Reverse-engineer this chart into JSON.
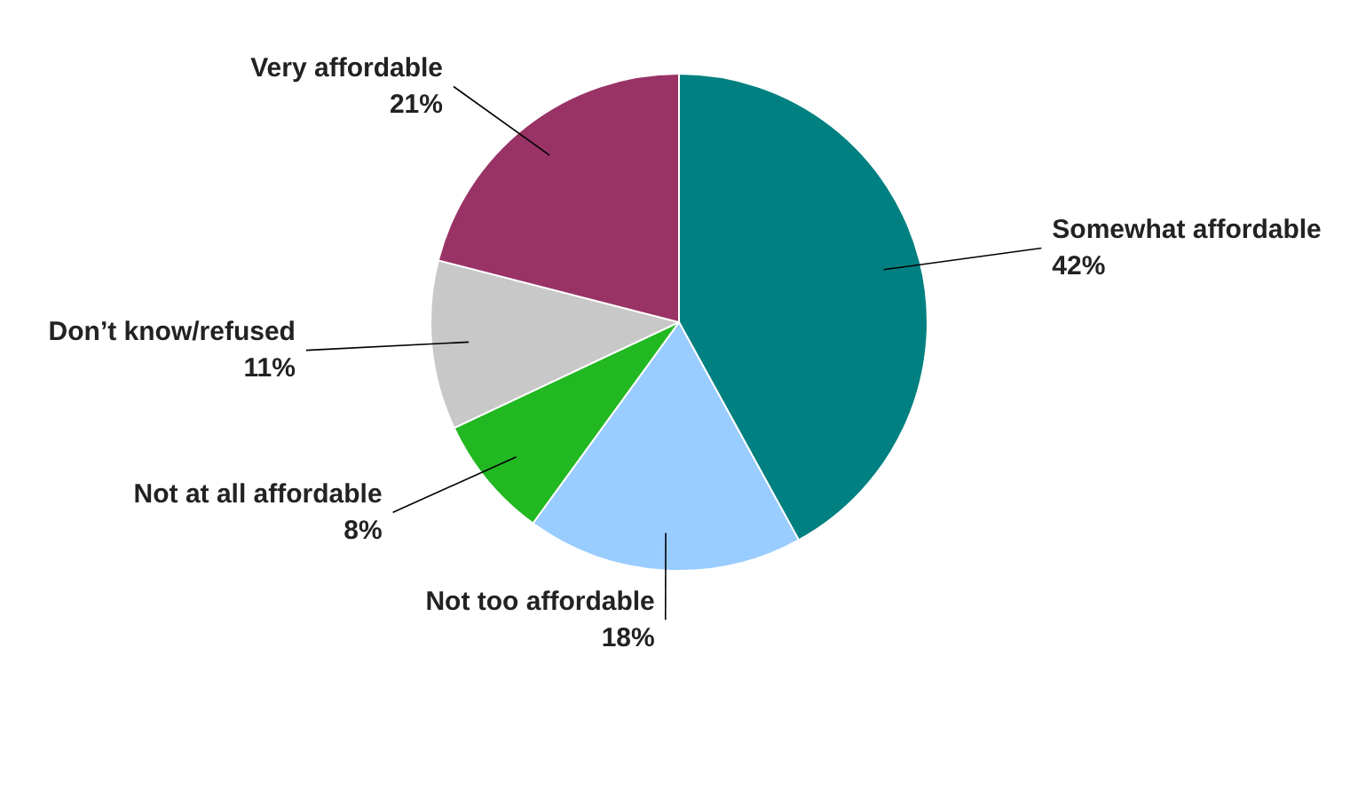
{
  "chart_data": {
    "type": "pie",
    "categories": [
      "Somewhat affordable",
      "Not too affordable",
      "Not at all affordable",
      "Don’t know/refused",
      "Very affordable"
    ],
    "values": [
      42,
      18,
      8,
      11,
      21
    ],
    "value_labels": [
      "42%",
      "18%",
      "8%",
      "11%",
      "21%"
    ],
    "colors": [
      "#008080",
      "#99ccff",
      "#22b822",
      "#c8c8c8",
      "#993366"
    ]
  }
}
